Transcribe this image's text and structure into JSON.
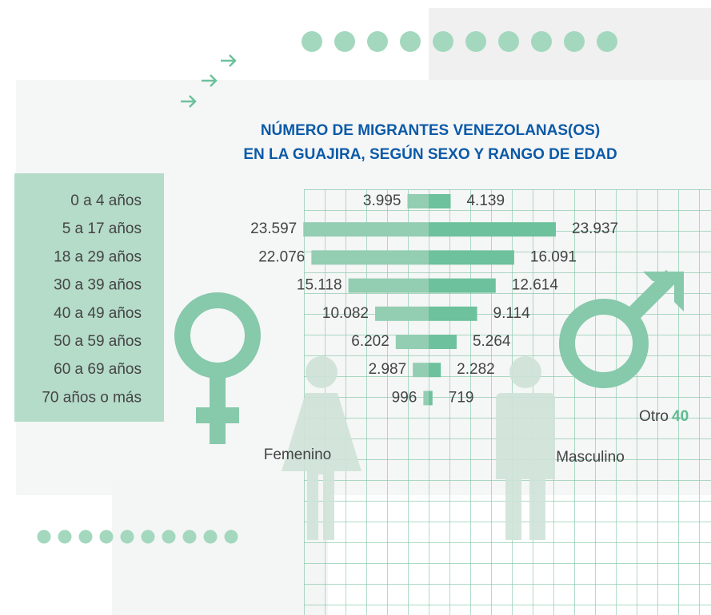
{
  "chart_data": {
    "type": "pyramid",
    "title": [
      "NÚMERO DE MIGRANTES VENEZOLANAS(OS)",
      "EN LA GUAJIRA, SEGÚN SEXO Y RANGO DE EDAD"
    ],
    "categories": [
      "0 a 4 años",
      "5 a 17 años",
      "18 a 29 años",
      "30 a 39 años",
      "40 a 49 años",
      "50 a 59 años",
      "60 a 69 años",
      "70 años o más"
    ],
    "series": [
      {
        "name": "Femenino",
        "color": "#93cdb2",
        "values": [
          3995,
          23597,
          22076,
          15118,
          10082,
          6202,
          2987,
          996
        ],
        "value_labels": [
          "3.995",
          "23.597",
          "22.076",
          "15.118",
          "10.082",
          "6.202",
          "2.987",
          "996"
        ]
      },
      {
        "name": "Masculino",
        "color": "#6dc19c",
        "values": [
          4139,
          23937,
          16091,
          12614,
          9114,
          5264,
          2282,
          719
        ],
        "value_labels": [
          "4.139",
          "23.937",
          "16.091",
          "12.614",
          "9.114",
          "5.264",
          "2.282",
          "719"
        ]
      }
    ],
    "other": {
      "label": "Otro",
      "value": 40
    }
  }
}
